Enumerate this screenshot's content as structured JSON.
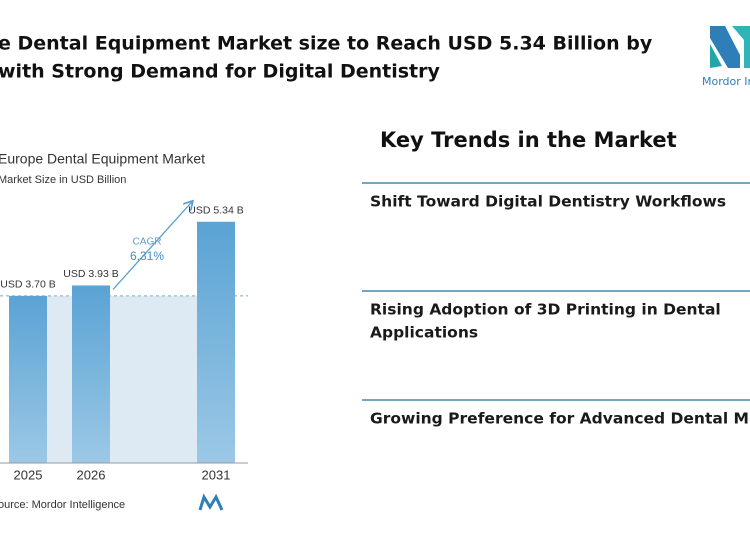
{
  "header": {
    "title_lines": [
      "e Dental Equipment Market size to Reach USD 5.34 Billion by",
      "with Strong Demand for Digital Dentistry"
    ],
    "logo_text": "Mordor In"
  },
  "chart_data": {
    "type": "bar",
    "title": "Europe Dental Equipment Market",
    "subtitle": "Market Size in USD Billion",
    "categories": [
      "2025",
      "2026",
      "2031"
    ],
    "values": [
      3.7,
      3.93,
      5.34
    ],
    "value_labels": [
      "USD 3.70 B",
      "USD 3.93 B",
      "USD 5.34 B"
    ],
    "color": "#4a93c6",
    "ylim": [
      0,
      5.6
    ],
    "annotation": {
      "label": "CAGR",
      "value": "6.31%"
    },
    "source": "ource: Mordor Intelligence"
  },
  "trends": {
    "heading": "Key Trends in the Market",
    "items": [
      [
        "Shift Toward Digital Dentistry Workflows"
      ],
      [
        "Rising Adoption of 3D Printing in Dental",
        "Applications"
      ],
      [
        "Growing Preference for Advanced Dental M"
      ]
    ]
  }
}
